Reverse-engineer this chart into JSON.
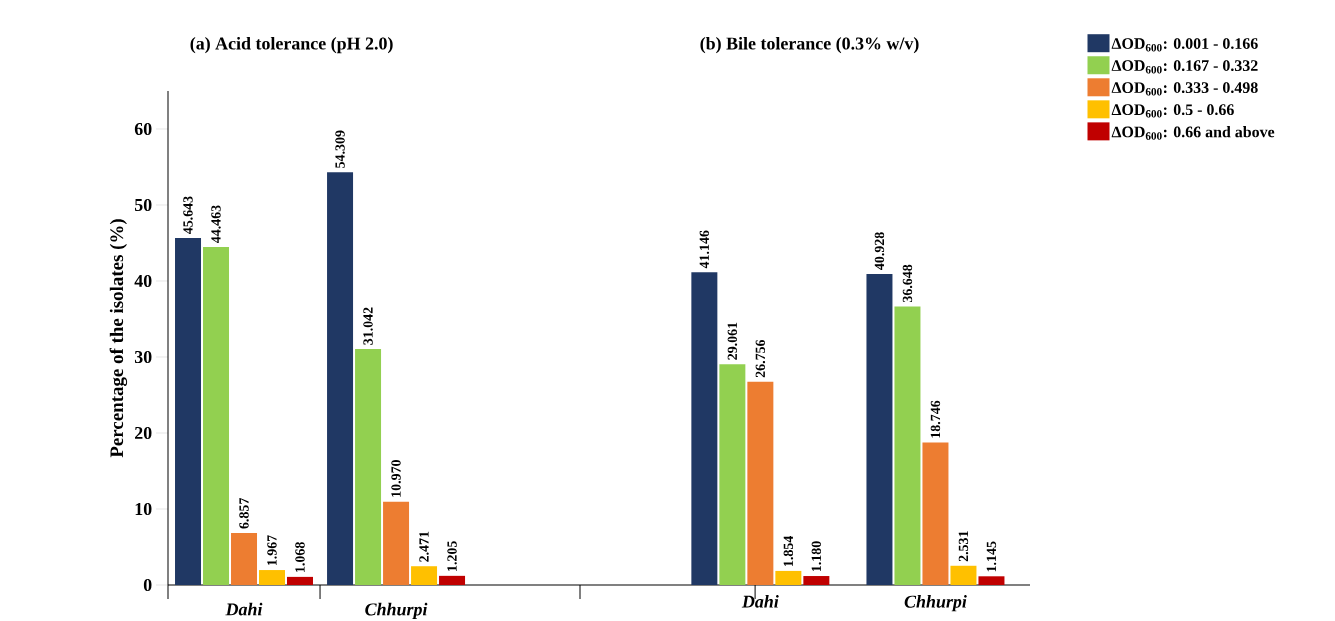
{
  "chart_data": [
    {
      "type": "bar",
      "title": "(a) Acid tolerance (pH 2.0)",
      "ylabel": "Percentage of the isolates (%)",
      "categories": [
        "Dahi",
        "Chhurpi"
      ],
      "series": [
        {
          "color": "#203864",
          "values": [
            45.643,
            54.309
          ],
          "value_labels": [
            "45.643",
            "54.309"
          ]
        },
        {
          "color": "#92d050",
          "values": [
            44.463,
            31.042
          ],
          "value_labels": [
            "44.463",
            "31.042"
          ]
        },
        {
          "color": "#ed7d31",
          "values": [
            6.857,
            10.97
          ],
          "value_labels": [
            "6.857",
            "10.970"
          ]
        },
        {
          "color": "#ffc000",
          "values": [
            1.967,
            2.471
          ],
          "value_labels": [
            "1.967",
            "2.471"
          ]
        },
        {
          "color": "#c00000",
          "values": [
            1.068,
            1.205
          ],
          "value_labels": [
            "1.068",
            "1.205"
          ]
        }
      ],
      "ylim": [
        0,
        65
      ],
      "yticks": [
        0,
        10,
        20,
        30,
        40,
        50,
        60
      ]
    },
    {
      "type": "bar",
      "title": "(b) Bile tolerance (0.3% w/v)",
      "categories": [
        "Dahi",
        "Chhurpi"
      ],
      "series": [
        {
          "name": "ΔOD$_{600}$: 0.001 - 0.166",
          "color": "#203864",
          "values": [
            41.146,
            40.928
          ],
          "value_labels": [
            "41.146",
            "40.928"
          ]
        },
        {
          "name": "ΔOD$_{600}$: 0.167 - 0.332",
          "color": "#92d050",
          "values": [
            29.061,
            36.648
          ],
          "value_labels": [
            "29.061",
            "36.648"
          ]
        },
        {
          "name": "ΔOD$_{600}$: 0.333 - 0.498",
          "color": "#ed7d31",
          "values": [
            26.756,
            18.746
          ],
          "value_labels": [
            "26.756",
            "18.746"
          ]
        },
        {
          "name": "ΔOD$_{600}$: 0.5 - 0.66",
          "color": "#ffc000",
          "values": [
            1.854,
            2.531
          ],
          "value_labels": [
            "1.854",
            "2.531"
          ]
        },
        {
          "name": "ΔOD$_{600}$: 0.66 and above",
          "color": "#c00000",
          "values": [
            1.18,
            1.145
          ],
          "value_labels": [
            "1.180",
            "1.145"
          ]
        }
      ],
      "tick_labels": "x",
      "legend": "right"
    }
  ]
}
